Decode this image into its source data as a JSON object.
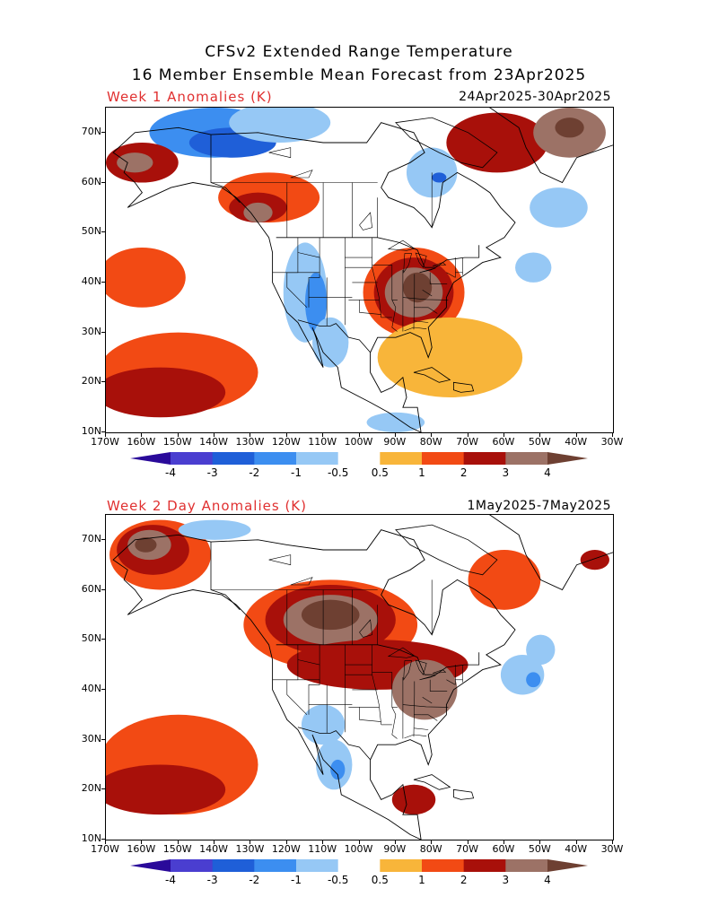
{
  "title": {
    "line1": "CFSv2 Extended Range Temperature",
    "line2": "16 Member Ensemble Mean Forecast from 23Apr2025"
  },
  "panels": [
    {
      "label": "Week 1 Anomalies (K)",
      "dates": "24Apr2025-30Apr2025",
      "blobs": [
        {
          "lon": -140,
          "lat": 70,
          "rx": 18,
          "ry": 5,
          "level": -2
        },
        {
          "lon": -135,
          "lat": 68,
          "rx": 12,
          "ry": 3,
          "level": -3
        },
        {
          "lon": -122,
          "lat": 72,
          "rx": 14,
          "ry": 4,
          "level": -1
        },
        {
          "lon": -160,
          "lat": 64,
          "rx": 10,
          "ry": 4,
          "level": 2
        },
        {
          "lon": -162,
          "lat": 64,
          "rx": 5,
          "ry": 2,
          "level": 3
        },
        {
          "lon": -125,
          "lat": 57,
          "rx": 14,
          "ry": 5,
          "level": 1
        },
        {
          "lon": -128,
          "lat": 55,
          "rx": 8,
          "ry": 3,
          "level": 2
        },
        {
          "lon": -128,
          "lat": 54,
          "rx": 4,
          "ry": 2,
          "level": 3
        },
        {
          "lon": -115,
          "lat": 38,
          "rx": 6,
          "ry": 10,
          "level": -1
        },
        {
          "lon": -112,
          "lat": 36,
          "rx": 3,
          "ry": 6,
          "level": -2
        },
        {
          "lon": -108,
          "lat": 28,
          "rx": 5,
          "ry": 5,
          "level": -1
        },
        {
          "lon": -85,
          "lat": 38,
          "rx": 14,
          "ry": 9,
          "level": 1
        },
        {
          "lon": -85,
          "lat": 38,
          "rx": 11,
          "ry": 7,
          "level": 2
        },
        {
          "lon": -85,
          "lat": 38,
          "rx": 8,
          "ry": 5,
          "level": 3
        },
        {
          "lon": -84,
          "lat": 39,
          "rx": 4,
          "ry": 3,
          "level": 4
        },
        {
          "lon": -80,
          "lat": 62,
          "rx": 7,
          "ry": 5,
          "level": -1
        },
        {
          "lon": -78,
          "lat": 61,
          "rx": 2,
          "ry": 1,
          "level": -3
        },
        {
          "lon": -62,
          "lat": 68,
          "rx": 14,
          "ry": 6,
          "level": 2
        },
        {
          "lon": -42,
          "lat": 70,
          "rx": 10,
          "ry": 5,
          "level": 3
        },
        {
          "lon": -42,
          "lat": 71,
          "rx": 4,
          "ry": 2,
          "level": 4
        },
        {
          "lon": -52,
          "lat": 43,
          "rx": 5,
          "ry": 3,
          "level": -1
        },
        {
          "lon": -150,
          "lat": 22,
          "rx": 22,
          "ry": 8,
          "level": 1
        },
        {
          "lon": -155,
          "lat": 18,
          "rx": 18,
          "ry": 5,
          "level": 2
        },
        {
          "lon": -160,
          "lat": 41,
          "rx": 12,
          "ry": 6,
          "level": 1
        },
        {
          "lon": -75,
          "lat": 25,
          "rx": 20,
          "ry": 8,
          "level": 0.5
        },
        {
          "lon": -45,
          "lat": 55,
          "rx": 8,
          "ry": 4,
          "level": -1
        },
        {
          "lon": -90,
          "lat": 12,
          "rx": 8,
          "ry": 2,
          "level": -1
        }
      ]
    },
    {
      "label": "Week 2 Day Anomalies (K)",
      "dates": "1May2025-7May2025",
      "blobs": [
        {
          "lon": -155,
          "lat": 67,
          "rx": 14,
          "ry": 7,
          "level": 1
        },
        {
          "lon": -157,
          "lat": 68,
          "rx": 10,
          "ry": 5,
          "level": 2
        },
        {
          "lon": -158,
          "lat": 69,
          "rx": 6,
          "ry": 3,
          "level": 3
        },
        {
          "lon": -159,
          "lat": 69,
          "rx": 3,
          "ry": 1.5,
          "level": 4
        },
        {
          "lon": -108,
          "lat": 53,
          "rx": 24,
          "ry": 9,
          "level": 1
        },
        {
          "lon": -108,
          "lat": 54,
          "rx": 18,
          "ry": 7,
          "level": 2
        },
        {
          "lon": -108,
          "lat": 54,
          "rx": 13,
          "ry": 5,
          "level": 3
        },
        {
          "lon": -108,
          "lat": 55,
          "rx": 8,
          "ry": 3,
          "level": 4
        },
        {
          "lon": -95,
          "lat": 45,
          "rx": 25,
          "ry": 5,
          "level": 2
        },
        {
          "lon": -82,
          "lat": 40,
          "rx": 9,
          "ry": 6,
          "level": 3
        },
        {
          "lon": -110,
          "lat": 33,
          "rx": 6,
          "ry": 4,
          "level": -1
        },
        {
          "lon": -107,
          "lat": 25,
          "rx": 5,
          "ry": 5,
          "level": -1
        },
        {
          "lon": -106,
          "lat": 24,
          "rx": 2,
          "ry": 2,
          "level": -2
        },
        {
          "lon": -85,
          "lat": 18,
          "rx": 6,
          "ry": 3,
          "level": 2
        },
        {
          "lon": -150,
          "lat": 25,
          "rx": 22,
          "ry": 10,
          "level": 1
        },
        {
          "lon": -155,
          "lat": 20,
          "rx": 18,
          "ry": 5,
          "level": 2
        },
        {
          "lon": -60,
          "lat": 62,
          "rx": 10,
          "ry": 6,
          "level": 1
        },
        {
          "lon": -55,
          "lat": 43,
          "rx": 6,
          "ry": 4,
          "level": -1
        },
        {
          "lon": -52,
          "lat": 42,
          "rx": 2,
          "ry": 1.5,
          "level": -2
        },
        {
          "lon": -35,
          "lat": 66,
          "rx": 4,
          "ry": 2,
          "level": 2
        },
        {
          "lon": -140,
          "lat": 72,
          "rx": 10,
          "ry": 2,
          "level": -1
        },
        {
          "lon": -50,
          "lat": 48,
          "rx": 4,
          "ry": 3,
          "level": -1
        }
      ]
    }
  ],
  "axes": {
    "lat_labels": [
      "70N",
      "60N",
      "50N",
      "40N",
      "30N",
      "20N",
      "10N"
    ],
    "lat_values": [
      70,
      60,
      50,
      40,
      30,
      20,
      10
    ],
    "lon_labels": [
      "170W",
      "160W",
      "150W",
      "140W",
      "130W",
      "120W",
      "110W",
      "100W",
      "90W",
      "80W",
      "70W",
      "60W",
      "50W",
      "40W",
      "30W"
    ],
    "lon_values": [
      -170,
      -160,
      -150,
      -140,
      -130,
      -120,
      -110,
      -100,
      -90,
      -80,
      -70,
      -60,
      -50,
      -40,
      -30
    ],
    "lon_range": [
      -170,
      -30
    ],
    "lat_range": [
      10,
      75
    ]
  },
  "colorbar": {
    "labels": [
      "-4",
      "-3",
      "-2",
      "-1",
      "-0.5",
      "0.5",
      "1",
      "2",
      "3",
      "4"
    ],
    "levels": [
      -4,
      -3,
      -2,
      -1,
      -0.5,
      0.5,
      1,
      2,
      3,
      4
    ],
    "colors": [
      "#2a0a9a",
      "#4a3ed0",
      "#1f5fd8",
      "#3c8ef0",
      "#96c8f5",
      "#ffffff",
      "#f8b53a",
      "#f24a14",
      "#a8100a",
      "#9c7266",
      "#6e4032"
    ]
  }
}
